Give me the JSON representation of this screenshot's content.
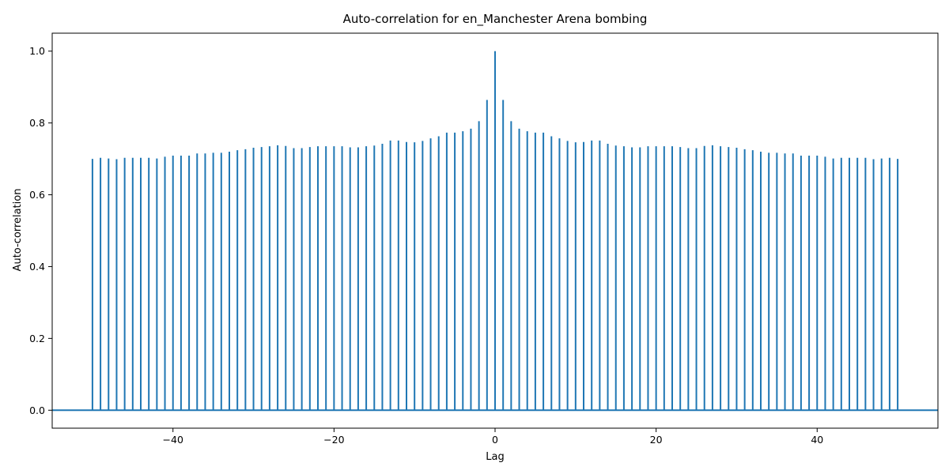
{
  "chart_data": {
    "type": "bar",
    "style": "stem",
    "title": "Auto-correlation for en_Manchester Arena bombing",
    "xlabel": "Lag",
    "ylabel": "Auto-correlation",
    "xlim": [
      -55,
      55
    ],
    "ylim": [
      -0.05,
      1.05
    ],
    "xticks": [
      -40,
      -20,
      0,
      20,
      40
    ],
    "yticks": [
      0.0,
      0.2,
      0.4,
      0.6,
      0.8,
      1.0
    ],
    "xtick_labels": [
      "−40",
      "−20",
      "0",
      "20",
      "40"
    ],
    "ytick_labels": [
      "0.0",
      "0.2",
      "0.4",
      "0.6",
      "0.8",
      "1.0"
    ],
    "color": "#1f77b4",
    "grid": false,
    "series": [
      {
        "x": [
          -50,
          -49,
          -48,
          -47,
          -46,
          -45,
          -44,
          -43,
          -42,
          -41,
          -40,
          -39,
          -38,
          -37,
          -36,
          -35,
          -34,
          -33,
          -32,
          -31,
          -30,
          -29,
          -28,
          -27,
          -26,
          -25,
          -24,
          -23,
          -22,
          -21,
          -20,
          -19,
          -18,
          -17,
          -16,
          -15,
          -14,
          -13,
          -12,
          -11,
          -10,
          -9,
          -8,
          -7,
          -6,
          -5,
          -4,
          -3,
          -2,
          -1,
          0,
          1,
          2,
          3,
          4,
          5,
          6,
          7,
          8,
          9,
          10,
          11,
          12,
          13,
          14,
          15,
          16,
          17,
          18,
          19,
          20,
          21,
          22,
          23,
          24,
          25,
          26,
          27,
          28,
          29,
          30,
          31,
          32,
          33,
          34,
          35,
          36,
          37,
          38,
          39,
          40,
          41,
          42,
          43,
          44,
          45,
          46,
          47,
          48,
          49,
          50
        ],
        "values": [
          0.7,
          0.703,
          0.701,
          0.699,
          0.703,
          0.703,
          0.703,
          0.703,
          0.701,
          0.706,
          0.709,
          0.709,
          0.709,
          0.715,
          0.715,
          0.717,
          0.717,
          0.72,
          0.724,
          0.727,
          0.731,
          0.733,
          0.735,
          0.738,
          0.736,
          0.73,
          0.73,
          0.733,
          0.735,
          0.735,
          0.735,
          0.735,
          0.732,
          0.732,
          0.735,
          0.737,
          0.742,
          0.751,
          0.751,
          0.747,
          0.746,
          0.75,
          0.757,
          0.763,
          0.773,
          0.773,
          0.777,
          0.784,
          0.805,
          0.864,
          1.0,
          0.864,
          0.805,
          0.784,
          0.777,
          0.773,
          0.773,
          0.763,
          0.757,
          0.75,
          0.746,
          0.747,
          0.751,
          0.751,
          0.742,
          0.737,
          0.735,
          0.732,
          0.732,
          0.735,
          0.735,
          0.735,
          0.735,
          0.733,
          0.73,
          0.73,
          0.736,
          0.738,
          0.735,
          0.733,
          0.731,
          0.727,
          0.724,
          0.72,
          0.717,
          0.717,
          0.715,
          0.715,
          0.709,
          0.709,
          0.709,
          0.706,
          0.701,
          0.703,
          0.703,
          0.703,
          0.703,
          0.699,
          0.701,
          0.703,
          0.7
        ]
      }
    ]
  }
}
